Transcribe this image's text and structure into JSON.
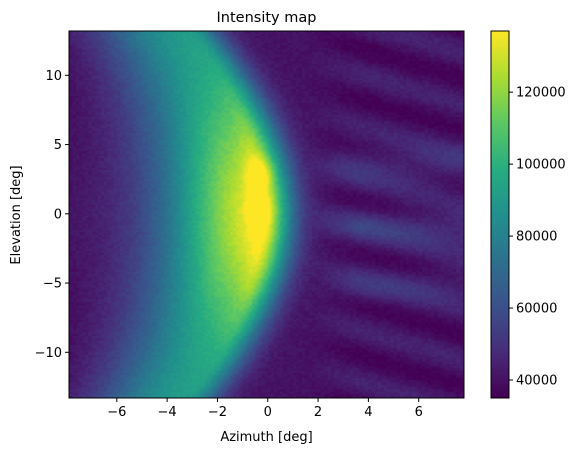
{
  "chart_data": {
    "type": "heatmap",
    "title": "Intensity map",
    "xlabel": "Azimuth [deg]",
    "ylabel": "Elevation [deg]",
    "xlim": [
      -7.9,
      7.8
    ],
    "ylim": [
      -13.3,
      13.2
    ],
    "xticks": [
      -6,
      -4,
      -2,
      0,
      2,
      4,
      6
    ],
    "xtick_labels": [
      "−6",
      "−4",
      "−2",
      "0",
      "2",
      "4",
      "6"
    ],
    "yticks": [
      -10,
      -5,
      0,
      5,
      10
    ],
    "ytick_labels": [
      "−10",
      "−5",
      "0",
      "5",
      "10"
    ],
    "colorbar": {
      "colormap": "viridis",
      "vmin": 35000,
      "vmax": 137000,
      "ticks": [
        40000,
        60000,
        80000,
        100000,
        120000
      ],
      "tick_labels": [
        "40000",
        "60000",
        "80000",
        "100000",
        "120000"
      ]
    },
    "description_features": {
      "arc_peak_value": 137000,
      "arc_peak_location": [
        -0.3,
        3.0
      ],
      "background_min_value": 36000
    }
  }
}
